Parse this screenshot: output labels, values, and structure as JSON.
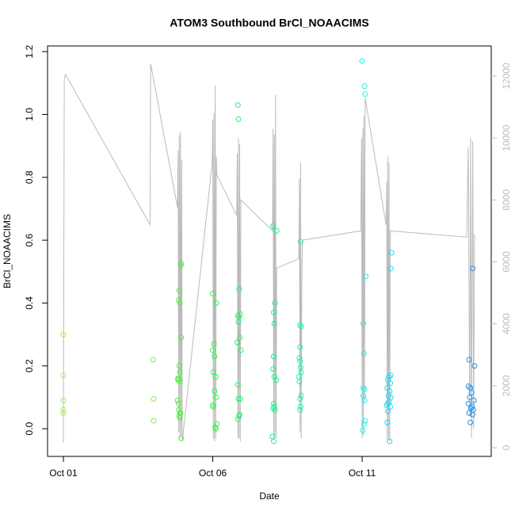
{
  "chart_data": {
    "type": "scatter",
    "title": "ATOM3 Southbound BrCl_NOAACIMS",
    "x_label": "Date",
    "y_label": "BrCl_NOAACIMS",
    "xlim": [
      0.47,
      15.32
    ],
    "xticks": [
      {
        "value": 1,
        "label": "Oct 01"
      },
      {
        "value": 6,
        "label": "Oct 06"
      },
      {
        "value": 11,
        "label": "Oct 11"
      }
    ],
    "ylim": [
      -0.088,
      1.218
    ],
    "yticks": [
      {
        "value": 0,
        "label": "0.0"
      },
      0.2,
      0.4,
      0.6,
      0.8,
      {
        "value": 1,
        "label": "1.0"
      },
      1.2
    ],
    "y2lim": [
      -281,
      12972
    ],
    "y2ticks": [
      0,
      2000,
      4000,
      6000,
      8000,
      10000,
      12000
    ],
    "y2color": "#bbbbbb",
    "series": [
      {
        "type": "line",
        "axis": "y2",
        "color": "#bbbbbb",
        "x": [
          1.0,
          1.03,
          1.07,
          3.9,
          3.92,
          4.82,
          4.84,
          4.86,
          4.88,
          4.9,
          4.92,
          4.94,
          4.96,
          4.98,
          5.98,
          6.0,
          6.02,
          6.04,
          6.06,
          6.08,
          6.1,
          6.12,
          6.14,
          6.8,
          6.82,
          6.84,
          6.86,
          6.88,
          6.9,
          6.92,
          6.94,
          8.0,
          8.02,
          8.04,
          8.06,
          8.08,
          8.1,
          8.12,
          8.14,
          8.88,
          8.9,
          8.92,
          8.94,
          8.96,
          8.98,
          9.0,
          10.95,
          10.98,
          11.0,
          11.02,
          11.04,
          11.06,
          11.08,
          11.1,
          11.8,
          11.82,
          11.84,
          11.86,
          11.88,
          11.9,
          11.92,
          11.94,
          14.5,
          14.55,
          14.6,
          14.63,
          14.66,
          14.7,
          14.73,
          14.76
        ],
        "values": [
          150,
          11900,
          12050,
          7200,
          12400,
          7750,
          9600,
          500,
          10100,
          300,
          10200,
          400,
          9300,
          200,
          9200,
          10600,
          300,
          10800,
          200,
          11700,
          300,
          9400,
          8800,
          7500,
          9500,
          300,
          10000,
          300,
          9800,
          200,
          8000,
          7000,
          10300,
          300,
          10100,
          400,
          11400,
          300,
          5800,
          6100,
          8700,
          500,
          9200,
          300,
          5200,
          6700,
          7000,
          10000,
          300,
          10300,
          400,
          10700,
          1500,
          11300,
          7200,
          8600,
          200,
          9400,
          300,
          9200,
          200,
          7000,
          6800,
          9700,
          1000,
          10000,
          300,
          9900,
          600,
          6900
        ]
      },
      {
        "color": "#a8f040",
        "x": [
          1.0,
          1.0,
          1.0,
          1.0,
          1.0
        ],
        "values": [
          0.3,
          0.17,
          0.09,
          0.06,
          0.05
        ]
      },
      {
        "color": "#80f040",
        "x": [
          4.0,
          4.02,
          4.02
        ],
        "values": [
          0.22,
          0.095,
          0.025
        ]
      },
      {
        "color": "#50f040",
        "x": [
          4.92,
          4.95,
          4.88,
          4.86,
          4.9,
          4.94,
          4.88,
          4.9,
          4.86,
          4.84,
          4.9,
          4.82,
          4.86,
          4.9,
          4.88,
          4.92,
          4.86,
          4.9,
          4.94,
          4.84
        ],
        "values": [
          0.52,
          0.525,
          0.44,
          0.41,
          0.4,
          0.29,
          0.2,
          0.18,
          0.16,
          0.155,
          0.15,
          0.09,
          0.08,
          0.05,
          0.04,
          0.05,
          0.06,
          0.035,
          -0.03,
          0.16
        ]
      },
      {
        "color": "#38f050",
        "x": [
          6.0,
          6.12,
          6.04,
          6.0,
          6.06,
          6.02,
          6.1,
          6.06,
          6.12,
          6.0,
          6.02,
          6.14,
          6.1,
          6.08
        ],
        "values": [
          0.43,
          0.4,
          0.27,
          0.25,
          0.23,
          0.18,
          0.165,
          0.12,
          0.1,
          0.075,
          0.07,
          0.015,
          0.0,
          0.005
        ]
      },
      {
        "color": "#28f070",
        "x": [
          6.84,
          6.86,
          6.88,
          6.92,
          6.84,
          6.88,
          6.86,
          6.9,
          6.82,
          6.94,
          6.84,
          6.86,
          6.92,
          6.88,
          6.84,
          6.9
        ],
        "values": [
          1.03,
          0.985,
          0.445,
          0.365,
          0.36,
          0.355,
          0.34,
          0.29,
          0.275,
          0.25,
          0.14,
          0.095,
          0.095,
          0.04,
          0.03,
          0.045
        ]
      },
      {
        "color": "#20f090",
        "x": [
          8.02,
          8.14,
          8.08,
          8.04,
          8.06,
          8.04,
          8.02,
          8.06,
          8.12,
          8.04,
          8.06,
          8.02,
          8.08,
          8.0,
          8.04
        ],
        "values": [
          0.645,
          0.63,
          0.4,
          0.37,
          0.335,
          0.23,
          0.19,
          0.165,
          0.155,
          0.08,
          0.07,
          0.065,
          0.06,
          -0.025,
          -0.04
        ]
      },
      {
        "color": "#20f0b8",
        "x": [
          8.94,
          8.92,
          8.96,
          8.92,
          8.9,
          8.92,
          8.94,
          8.96,
          8.88,
          8.9,
          8.96,
          8.92,
          8.94,
          8.92
        ],
        "values": [
          0.595,
          0.33,
          0.325,
          0.26,
          0.225,
          0.215,
          0.195,
          0.18,
          0.165,
          0.15,
          0.105,
          0.095,
          0.07,
          0.06
        ]
      },
      {
        "color": "#20f0f0",
        "x": [
          11.0,
          11.08,
          11.1,
          11.12,
          11.04,
          11.06,
          11.04,
          11.08,
          11.04,
          11.08,
          11.1,
          11.06,
          11.02
        ],
        "values": [
          1.17,
          1.09,
          1.065,
          0.485,
          0.335,
          0.24,
          0.13,
          0.125,
          0.105,
          0.09,
          0.025,
          0.015,
          -0.005
        ]
      },
      {
        "color": "#20d8f0",
        "x": [
          11.98,
          11.96,
          11.96,
          11.9,
          11.86,
          11.94,
          11.84,
          11.92,
          11.88,
          11.96,
          11.9,
          11.86,
          11.82,
          11.94,
          11.86,
          11.84,
          11.92
        ],
        "values": [
          0.56,
          0.51,
          0.17,
          0.165,
          0.155,
          0.145,
          0.13,
          0.12,
          0.105,
          0.1,
          0.085,
          0.08,
          0.075,
          0.07,
          0.055,
          0.02,
          -0.04
        ]
      },
      {
        "color": "#2a8ee0",
        "x": [
          14.7,
          14.58,
          14.76,
          14.56,
          14.62,
          14.66,
          14.6,
          14.74,
          14.56,
          14.68,
          14.64,
          14.72,
          14.58,
          14.7,
          14.62
        ],
        "values": [
          0.51,
          0.22,
          0.2,
          0.135,
          0.13,
          0.115,
          0.1,
          0.09,
          0.08,
          0.07,
          0.065,
          0.06,
          0.05,
          0.045,
          0.02
        ]
      }
    ]
  }
}
